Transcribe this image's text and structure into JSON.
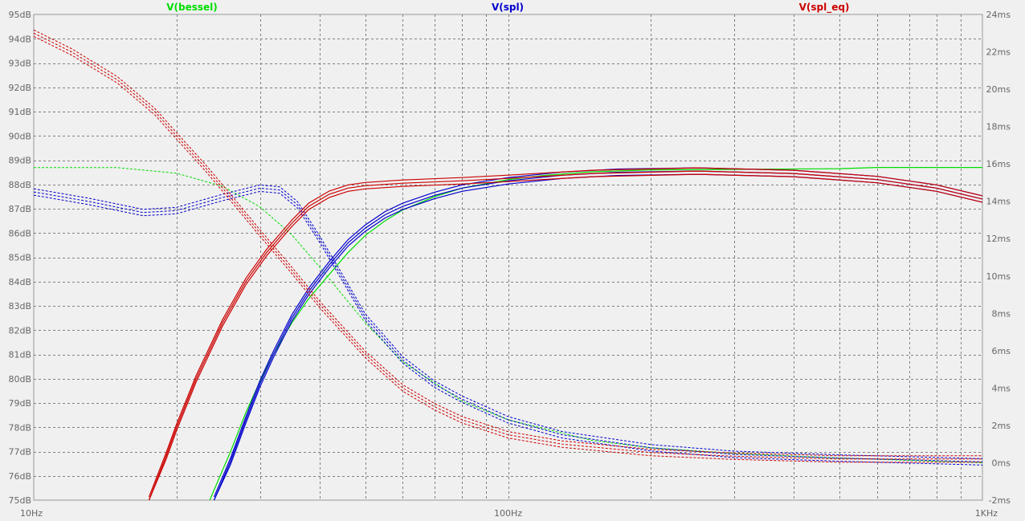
{
  "chart_data": {
    "type": "line",
    "x_scale": "log",
    "xlim": [
      10,
      1000
    ],
    "ylim_left": [
      75,
      95
    ],
    "ylim_right": [
      -2,
      24
    ],
    "grid": true,
    "legend_placement": "top",
    "x_ticks": [
      "10Hz",
      "100Hz",
      "1KHz"
    ],
    "y_left_ticks": [
      "95dB",
      "94dB",
      "93dB",
      "92dB",
      "91dB",
      "90dB",
      "89dB",
      "88dB",
      "87dB",
      "86dB",
      "85dB",
      "84dB",
      "83dB",
      "82dB",
      "81dB",
      "80dB",
      "79dB",
      "78dB",
      "77dB",
      "76dB",
      "75dB"
    ],
    "y_right_ticks": [
      "24ms",
      "22ms",
      "20ms",
      "18ms",
      "16ms",
      "14ms",
      "12ms",
      "10ms",
      "8ms",
      "6ms",
      "4ms",
      "2ms",
      "0ms",
      "-2ms"
    ],
    "series": [
      {
        "name": "V(bessel)",
        "color": "#00dd00",
        "magnitude_db": [
          [
            23.5,
            75
          ],
          [
            26,
            77
          ],
          [
            28,
            78.6
          ],
          [
            30,
            79.9
          ],
          [
            32,
            81
          ],
          [
            35,
            82.3
          ],
          [
            38,
            83.3
          ],
          [
            42,
            84.3
          ],
          [
            46,
            85.2
          ],
          [
            50,
            85.9
          ],
          [
            55,
            86.5
          ],
          [
            60,
            86.95
          ],
          [
            70,
            87.5
          ],
          [
            80,
            87.85
          ],
          [
            100,
            88.2
          ],
          [
            120,
            88.38
          ],
          [
            150,
            88.52
          ],
          [
            200,
            88.6
          ],
          [
            300,
            88.62
          ],
          [
            500,
            88.65
          ],
          [
            600,
            88.7
          ],
          [
            1000,
            88.7
          ]
        ],
        "group_delay_ms": [
          [
            10,
            15.8
          ],
          [
            15,
            15.8
          ],
          [
            20,
            15.5
          ],
          [
            25,
            14.8
          ],
          [
            30,
            13.7
          ],
          [
            35,
            12.2
          ],
          [
            40,
            10.5
          ],
          [
            50,
            7.5
          ],
          [
            60,
            5.4
          ],
          [
            80,
            3.3
          ],
          [
            100,
            2.3
          ],
          [
            150,
            1.2
          ],
          [
            200,
            0.8
          ],
          [
            300,
            0.5
          ],
          [
            500,
            0.25
          ],
          [
            1000,
            0.0
          ]
        ]
      },
      {
        "name": "V(spl)",
        "color": "#0000cc",
        "magnitude_db": [
          [
            24,
            75
          ],
          [
            26,
            76.6
          ],
          [
            28,
            78.3
          ],
          [
            30,
            79.8
          ],
          [
            32,
            81
          ],
          [
            35,
            82.5
          ],
          [
            38,
            83.6
          ],
          [
            42,
            84.7
          ],
          [
            46,
            85.6
          ],
          [
            50,
            86.2
          ],
          [
            55,
            86.75
          ],
          [
            60,
            87.1
          ],
          [
            70,
            87.55
          ],
          [
            80,
            87.85
          ],
          [
            100,
            88.15
          ],
          [
            130,
            88.38
          ],
          [
            170,
            88.5
          ],
          [
            250,
            88.55
          ],
          [
            400,
            88.45
          ],
          [
            600,
            88.2
          ],
          [
            800,
            87.85
          ],
          [
            1000,
            87.4
          ]
        ],
        "group_delay_ms": [
          [
            10,
            14.5
          ],
          [
            13,
            14.0
          ],
          [
            17,
            13.4
          ],
          [
            20,
            13.5
          ],
          [
            25,
            14.2
          ],
          [
            30,
            14.7
          ],
          [
            33,
            14.6
          ],
          [
            36,
            13.8
          ],
          [
            40,
            12.0
          ],
          [
            45,
            9.8
          ],
          [
            50,
            7.8
          ],
          [
            60,
            5.5
          ],
          [
            70,
            4.2
          ],
          [
            80,
            3.4
          ],
          [
            100,
            2.3
          ],
          [
            130,
            1.5
          ],
          [
            200,
            0.8
          ],
          [
            300,
            0.45
          ],
          [
            500,
            0.25
          ],
          [
            1000,
            0.05
          ]
        ]
      },
      {
        "name": "V(spl_eq)",
        "color": "#cc0000",
        "magnitude_db": [
          [
            17.5,
            75
          ],
          [
            19,
            76.8
          ],
          [
            20,
            78
          ],
          [
            22,
            80
          ],
          [
            25,
            82.3
          ],
          [
            28,
            84
          ],
          [
            31,
            85.2
          ],
          [
            35,
            86.4
          ],
          [
            38,
            87.1
          ],
          [
            42,
            87.6
          ],
          [
            46,
            87.85
          ],
          [
            50,
            87.95
          ],
          [
            60,
            88.05
          ],
          [
            80,
            88.15
          ],
          [
            100,
            88.25
          ],
          [
            150,
            88.45
          ],
          [
            250,
            88.55
          ],
          [
            400,
            88.45
          ],
          [
            600,
            88.2
          ],
          [
            800,
            87.85
          ],
          [
            1000,
            87.4
          ]
        ],
        "group_delay_ms": [
          [
            10,
            23.0
          ],
          [
            12,
            22.0
          ],
          [
            15,
            20.5
          ],
          [
            18,
            18.8
          ],
          [
            20,
            17.5
          ],
          [
            23,
            15.8
          ],
          [
            26,
            14.2
          ],
          [
            30,
            12.3
          ],
          [
            35,
            10.3
          ],
          [
            40,
            8.5
          ],
          [
            50,
            5.8
          ],
          [
            60,
            4.0
          ],
          [
            70,
            3.0
          ],
          [
            80,
            2.3
          ],
          [
            100,
            1.5
          ],
          [
            130,
            1.0
          ],
          [
            200,
            0.55
          ],
          [
            300,
            0.35
          ],
          [
            500,
            0.2
          ],
          [
            1000,
            0.2
          ]
        ]
      }
    ]
  }
}
